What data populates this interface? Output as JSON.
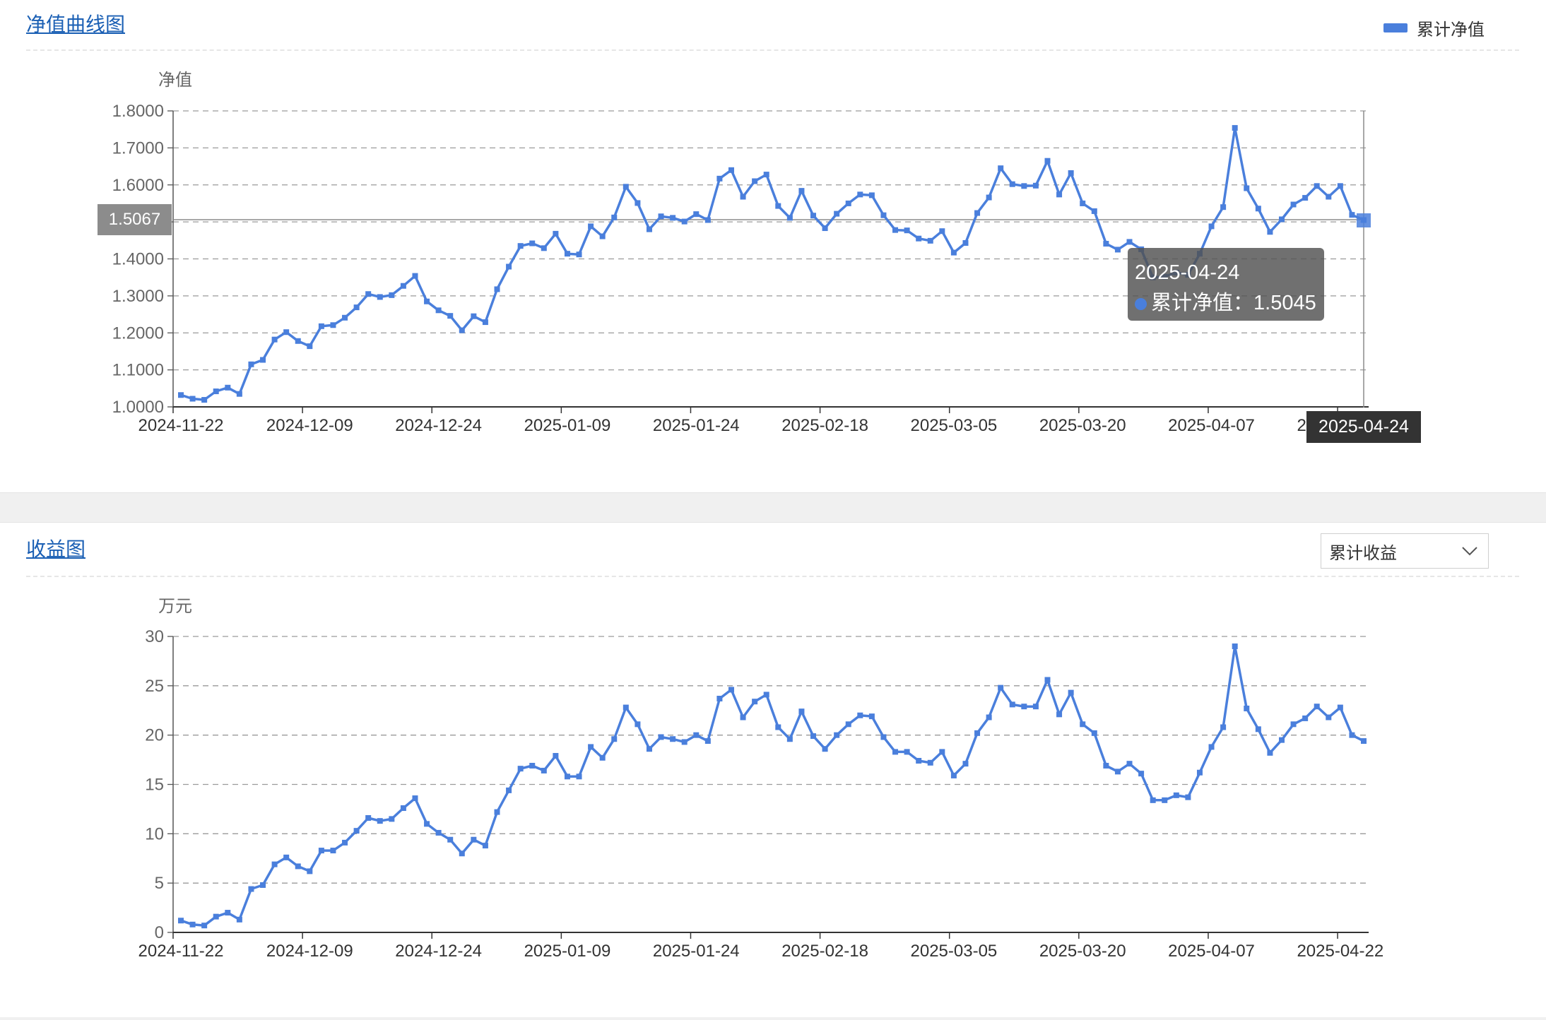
{
  "nav_panel": {
    "title": "净值曲线图",
    "legend_label": "累计净值",
    "y_unit": "净值",
    "crosshair_y_label": "1.5067",
    "crosshair_x_label": "2025-04-24",
    "tooltip": {
      "date": "2025-04-24",
      "series_label": "累计净值",
      "value_text": "1.5045"
    }
  },
  "income_panel": {
    "title": "收益图",
    "y_unit": "万元",
    "dropdown_value": "累计收益"
  },
  "colors": {
    "series": "#4a7fdc",
    "title_link": "#1a5fb4"
  },
  "chart_data": [
    {
      "type": "line",
      "ylabel": "净值",
      "ylim": [
        1.0,
        1.8
      ],
      "yticks": [
        "1.8000",
        "1.7000",
        "1.6000",
        "1.5000",
        "1.4000",
        "1.3000",
        "1.2000",
        "1.1000",
        "1.0000"
      ],
      "xtick_labels": [
        "2024-11-22",
        "2024-12-09",
        "2024-12-24",
        "2025-01-09",
        "2025-01-24",
        "2025-02-18",
        "2025-03-05",
        "2025-03-20",
        "2025-04-07",
        "2025-04-22"
      ],
      "xtick_index": [
        0,
        11,
        22,
        33,
        44,
        55,
        66,
        77,
        88,
        99
      ],
      "grid": true,
      "legend_position": "top-right",
      "series": [
        {
          "name": "累计净值",
          "values": [
            1.032,
            1.022,
            1.019,
            1.042,
            1.052,
            1.035,
            1.115,
            1.127,
            1.182,
            1.202,
            1.178,
            1.164,
            1.218,
            1.221,
            1.241,
            1.269,
            1.305,
            1.297,
            1.302,
            1.327,
            1.354,
            1.285,
            1.261,
            1.246,
            1.207,
            1.245,
            1.229,
            1.318,
            1.379,
            1.435,
            1.442,
            1.429,
            1.468,
            1.414,
            1.412,
            1.488,
            1.461,
            1.512,
            1.595,
            1.551,
            1.48,
            1.515,
            1.511,
            1.501,
            1.521,
            1.505,
            1.617,
            1.64,
            1.568,
            1.61,
            1.628,
            1.543,
            1.511,
            1.584,
            1.517,
            1.483,
            1.522,
            1.55,
            1.574,
            1.572,
            1.518,
            1.478,
            1.477,
            1.455,
            1.449,
            1.475,
            1.417,
            1.443,
            1.524,
            1.566,
            1.645,
            1.602,
            1.597,
            1.598,
            1.665,
            1.574,
            1.632,
            1.55,
            1.529,
            1.441,
            1.425,
            1.446,
            1.426,
            1.35,
            1.352,
            1.363,
            1.357,
            1.414,
            1.488,
            1.54,
            1.754,
            1.591,
            1.536,
            1.473,
            1.507,
            1.547,
            1.565,
            1.597,
            1.568,
            1.597,
            1.519,
            1.505
          ]
        }
      ]
    },
    {
      "type": "line",
      "ylabel": "万元",
      "ylim": [
        0,
        30
      ],
      "yticks": [
        "30",
        "25",
        "20",
        "15",
        "10",
        "5",
        "0"
      ],
      "xtick_labels": [
        "2024-11-22",
        "2024-12-09",
        "2024-12-24",
        "2025-01-09",
        "2025-01-24",
        "2025-02-18",
        "2025-03-05",
        "2025-03-20",
        "2025-04-07",
        "2025-04-22"
      ],
      "xtick_index": [
        0,
        11,
        22,
        33,
        44,
        55,
        66,
        77,
        88,
        99
      ],
      "grid": true,
      "series": [
        {
          "name": "累计收益",
          "values": [
            1.2,
            0.8,
            0.7,
            1.6,
            2.0,
            1.3,
            4.4,
            4.8,
            6.9,
            7.6,
            6.7,
            6.2,
            8.3,
            8.3,
            9.1,
            10.3,
            11.6,
            11.3,
            11.5,
            12.6,
            13.6,
            11.0,
            10.1,
            9.4,
            8.0,
            9.4,
            8.8,
            12.2,
            14.4,
            16.6,
            16.9,
            16.4,
            17.9,
            15.8,
            15.8,
            18.8,
            17.7,
            19.6,
            22.8,
            21.1,
            18.6,
            19.8,
            19.6,
            19.3,
            20.0,
            19.4,
            23.7,
            24.6,
            21.8,
            23.4,
            24.1,
            20.8,
            19.6,
            22.4,
            19.9,
            18.6,
            20.0,
            21.1,
            22.0,
            21.9,
            19.8,
            18.3,
            18.3,
            17.4,
            17.2,
            18.3,
            15.9,
            17.1,
            20.2,
            21.8,
            24.8,
            23.1,
            22.9,
            22.9,
            25.6,
            22.1,
            24.3,
            21.1,
            20.2,
            16.9,
            16.3,
            17.1,
            16.1,
            13.4,
            13.4,
            13.9,
            13.7,
            16.2,
            18.8,
            20.8,
            29.0,
            22.7,
            20.6,
            18.2,
            19.5,
            21.1,
            21.7,
            22.9,
            21.8,
            22.8,
            20.0,
            19.4
          ]
        }
      ]
    }
  ]
}
